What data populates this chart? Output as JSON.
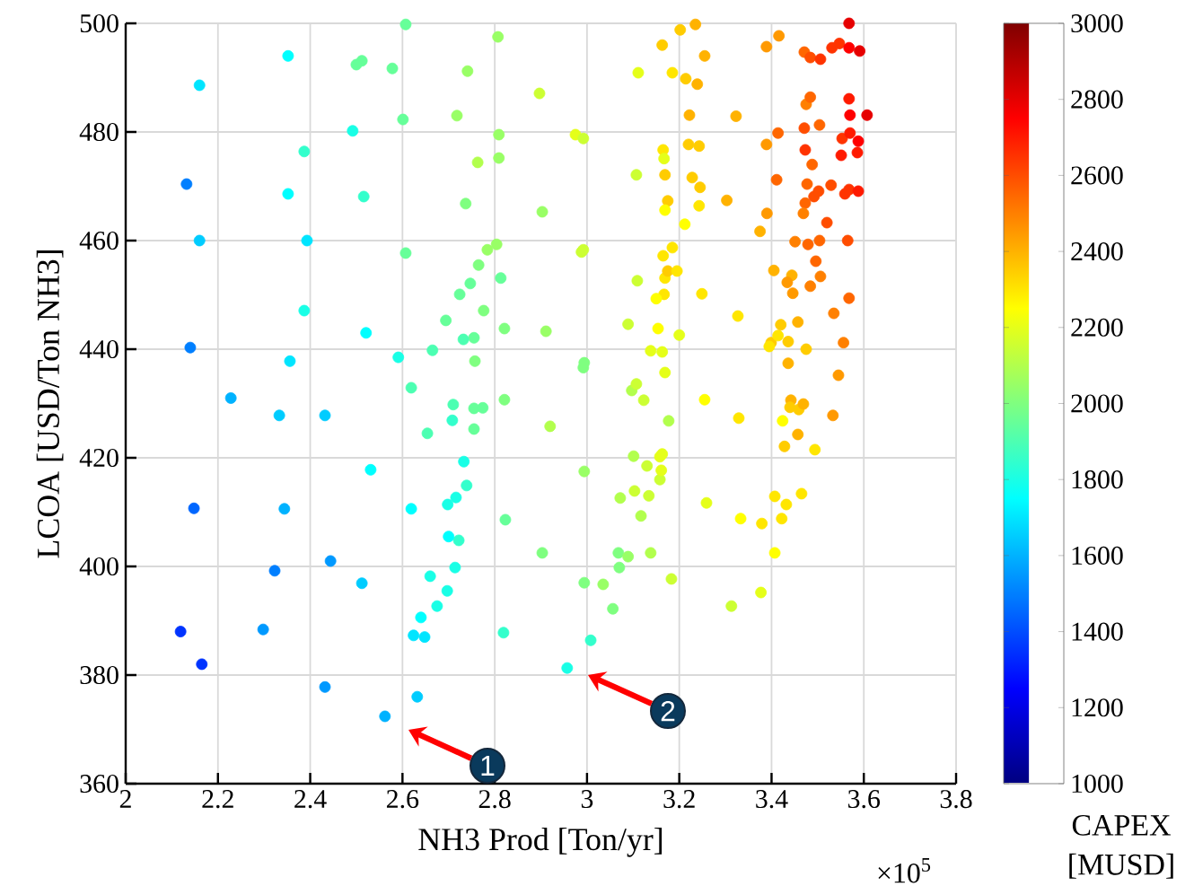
{
  "chart_data": {
    "type": "scatter",
    "xlabel": "NH3 Prod [Ton/yr]",
    "ylabel": "LCOA [USD/Ton NH3]",
    "clabel": "CAPEX [MUSD]",
    "x": [
      2.132,
      2.14,
      2.148,
      2.119,
      2.165,
      2.16,
      2.16,
      2.228,
      2.352,
      2.352,
      2.387,
      2.393,
      2.387,
      2.356,
      2.333,
      2.432,
      2.344,
      2.531,
      2.521,
      2.323,
      2.444,
      2.512,
      2.298,
      2.432,
      2.562,
      2.632,
      2.624,
      2.648,
      2.64,
      2.675,
      2.697,
      2.714,
      2.66,
      2.619,
      2.698,
      2.716,
      2.722,
      2.7,
      2.739,
      2.733,
      2.708,
      2.71,
      2.755,
      2.755,
      2.774,
      2.755,
      2.732,
      2.757,
      2.821,
      2.821,
      2.823,
      2.819,
      2.665,
      2.619,
      2.654,
      2.694,
      2.724,
      2.747,
      2.776,
      2.765,
      2.784,
      2.804,
      2.813,
      2.809,
      2.763,
      2.737,
      2.809,
      2.718,
      2.741,
      2.807,
      2.607,
      2.512,
      2.5,
      2.578,
      2.492,
      2.601,
      2.607,
      2.516,
      2.591,
      2.897,
      2.903,
      2.911,
      2.92,
      2.903,
      2.957,
      3.008,
      2.992,
      2.994,
      2.994,
      2.994,
      3.035,
      3.056,
      3.068,
      3.072,
      3.07,
      3.089,
      2.975,
      2.992,
      2.988,
      2.992,
      3.111,
      3.107,
      3.109,
      3.089,
      3.097,
      3.107,
      3.123,
      3.101,
      3.103,
      3.117,
      3.13,
      3.134,
      3.138,
      3.158,
      3.158,
      3.163,
      3.161,
      3.154,
      3.138,
      3.163,
      3.169,
      3.177,
      3.183,
      3.163,
      3.185,
      3.165,
      3.167,
      3.169,
      3.175,
      3.169,
      3.165,
      3.169,
      3.175,
      3.167,
      3.15,
      3.185,
      3.195,
      3.2,
      3.202,
      3.235,
      3.214,
      3.239,
      3.255,
      3.222,
      3.22,
      3.243,
      3.228,
      3.245,
      3.243,
      3.212,
      3.249,
      3.255,
      3.259,
      3.303,
      3.323,
      3.327,
      3.329,
      3.333,
      3.313,
      3.375,
      3.39,
      3.389,
      3.416,
      3.389,
      3.414,
      3.411,
      3.405,
      3.399,
      3.414,
      3.42,
      3.395,
      3.436,
      3.436,
      3.444,
      3.446,
      3.434,
      3.457,
      3.451,
      3.442,
      3.44,
      3.459,
      3.424,
      3.428,
      3.457,
      3.422,
      3.432,
      3.407,
      3.465,
      3.379,
      3.377,
      3.407,
      3.494,
      3.479,
      3.477,
      3.473,
      3.469,
      3.475,
      3.475,
      3.469,
      3.471,
      3.484,
      3.506,
      3.484,
      3.473,
      3.471,
      3.488,
      3.492,
      3.502,
      3.504,
      3.496,
      3.484,
      3.506,
      3.504,
      3.52,
      3.529,
      3.533,
      3.535,
      3.545,
      3.531,
      3.547,
      3.553,
      3.551,
      3.559,
      3.568,
      3.565,
      3.568,
      3.556,
      3.568,
      3.57,
      3.568,
      3.568,
      3.591,
      3.57,
      3.588,
      3.586,
      3.588,
      3.607
    ],
    "values": [
      470.4,
      440.3,
      410.7,
      388.0,
      382.0,
      488.6,
      460.0,
      431.0,
      494.0,
      468.6,
      476.4,
      460.0,
      447.1,
      437.8,
      427.8,
      427.8,
      410.6,
      417.8,
      443.0,
      399.2,
      401.0,
      396.9,
      388.4,
      377.8,
      372.4,
      376.0,
      387.3,
      387.0,
      390.6,
      392.7,
      395.5,
      399.8,
      398.2,
      410.6,
      411.4,
      412.7,
      404.8,
      405.5,
      414.9,
      419.3,
      426.9,
      429.8,
      425.3,
      429.1,
      429.2,
      442.1,
      441.8,
      437.8,
      443.8,
      430.7,
      408.6,
      387.8,
      439.8,
      432.9,
      424.5,
      445.3,
      450.1,
      452.1,
      447.1,
      455.5,
      458.3,
      459.3,
      453.1,
      475.2,
      474.4,
      466.8,
      479.5,
      483.0,
      491.2,
      497.5,
      499.8,
      493.1,
      492.4,
      491.7,
      480.2,
      482.3,
      457.7,
      468.1,
      438.5,
      487.1,
      465.3,
      443.3,
      425.8,
      402.5,
      381.3,
      386.4,
      436.6,
      437.5,
      417.5,
      397.0,
      396.7,
      392.2,
      402.5,
      412.6,
      399.8,
      401.8,
      479.5,
      478.8,
      457.9,
      458.3,
      490.9,
      472.1,
      452.6,
      444.6,
      432.4,
      433.6,
      430.6,
      420.3,
      413.9,
      409.3,
      418.5,
      413.0,
      402.5,
      416.0,
      420.2,
      420.7,
      417.7,
      443.8,
      439.7,
      439.5,
      435.7,
      426.8,
      397.7,
      496.0,
      490.9,
      476.7,
      475.1,
      472.1,
      467.3,
      465.6,
      457.2,
      453.1,
      454.4,
      450.1,
      449.3,
      458.7,
      454.4,
      442.6,
      498.8,
      499.8,
      489.8,
      488.8,
      494.0,
      483.1,
      477.7,
      477.4,
      471.6,
      469.8,
      466.4,
      463.0,
      450.2,
      430.7,
      411.7,
      467.4,
      482.9,
      446.1,
      427.3,
      408.8,
      392.7,
      461.7,
      465.0,
      495.7,
      497.7,
      477.7,
      479.8,
      471.2,
      454.5,
      441.2,
      442.5,
      444.5,
      440.5,
      437.4,
      441.4,
      453.6,
      450.3,
      452.3,
      445.0,
      459.8,
      430.6,
      429.3,
      428.9,
      426.8,
      422.1,
      424.3,
      408.8,
      411.4,
      412.9,
      413.4,
      407.9,
      395.2,
      402.5,
      421.5,
      459.3,
      470.4,
      466.9,
      465.0,
      485.1,
      440.0,
      429.9,
      494.7,
      493.7,
      493.4,
      486.4,
      476.7,
      480.7,
      474.0,
      468.1,
      469.1,
      481.3,
      456.2,
      451.6,
      453.4,
      460.0,
      463.3,
      470.2,
      427.8,
      446.6,
      435.2,
      495.5,
      496.3,
      478.8,
      475.7,
      468.6,
      469.4,
      460.0,
      449.4,
      441.2,
      486.1,
      483.1,
      500.0,
      495.5,
      494.9,
      479.8,
      478.3,
      476.2,
      469.1,
      483.1
    ],
    "cvalues": [
      1500,
      1500,
      1450,
      1350,
      1350,
      1700,
      1650,
      1600,
      1750,
      1750,
      1850,
      1700,
      1800,
      1700,
      1650,
      1650,
      1600,
      1750,
      1750,
      1500,
      1550,
      1650,
      1550,
      1550,
      1600,
      1650,
      1700,
      1700,
      1750,
      1800,
      1800,
      1800,
      1800,
      1750,
      1800,
      1800,
      1850,
      1750,
      1850,
      1800,
      1850,
      1900,
      1950,
      1950,
      1950,
      1950,
      1900,
      2000,
      2000,
      2000,
      1950,
      1850,
      1900,
      1900,
      1900,
      1950,
      1950,
      1950,
      2000,
      2000,
      2050,
      2050,
      1950,
      2050,
      2100,
      2000,
      2050,
      2050,
      2050,
      2050,
      1950,
      1950,
      1950,
      1950,
      1800,
      1950,
      1950,
      1850,
      1800,
      2150,
      2050,
      2050,
      2100,
      2000,
      1800,
      1850,
      2000,
      2000,
      2050,
      2000,
      2050,
      2000,
      2000,
      2100,
      2000,
      2050,
      2200,
      2150,
      2150,
      2150,
      2200,
      2150,
      2150,
      2150,
      2100,
      2150,
      2150,
      2100,
      2150,
      2100,
      2150,
      2150,
      2100,
      2150,
      2200,
      2200,
      2200,
      2250,
      2200,
      2200,
      2200,
      2100,
      2150,
      2350,
      2300,
      2300,
      2200,
      2350,
      2350,
      2250,
      2300,
      2300,
      2350,
      2300,
      2250,
      2300,
      2300,
      2200,
      2350,
      2400,
      2350,
      2400,
      2400,
      2400,
      2350,
      2350,
      2350,
      2350,
      2300,
      2250,
      2300,
      2250,
      2200,
      2400,
      2400,
      2300,
      2300,
      2250,
      2150,
      2400,
      2450,
      2450,
      2450,
      2450,
      2550,
      2550,
      2400,
      2350,
      2300,
      2350,
      2300,
      2400,
      2350,
      2400,
      2450,
      2450,
      2400,
      2500,
      2400,
      2350,
      2350,
      2250,
      2350,
      2400,
      2300,
      2300,
      2300,
      2300,
      2300,
      2200,
      2250,
      2300,
      2550,
      2550,
      2550,
      2500,
      2500,
      2350,
      2400,
      2550,
      2600,
      2650,
      2550,
      2650,
      2600,
      2550,
      2600,
      2600,
      2550,
      2550,
      2500,
      2500,
      2550,
      2600,
      2600,
      2450,
      2500,
      2450,
      2650,
      2650,
      2650,
      2700,
      2650,
      2650,
      2600,
      2550,
      2500,
      2700,
      2750,
      2800,
      2750,
      2800,
      2700,
      2750,
      2700,
      2700,
      2800
    ],
    "xlim": [
      2,
      3.8
    ],
    "xticks": [
      2,
      2.2,
      2.4,
      2.6,
      2.8,
      3,
      3.2,
      3.4,
      3.6,
      3.8
    ],
    "ylim": [
      360,
      500
    ],
    "yticks": [
      360,
      380,
      400,
      420,
      440,
      460,
      480,
      500
    ],
    "clim": [
      1000,
      3000
    ],
    "cticks": [
      1000,
      1200,
      1400,
      1600,
      1800,
      2000,
      2200,
      2400,
      2600,
      2800,
      3000
    ],
    "grid": true,
    "marker": "circle",
    "annotations": [
      "1",
      "2",
      "×10$^{5}$"
    ]
  }
}
